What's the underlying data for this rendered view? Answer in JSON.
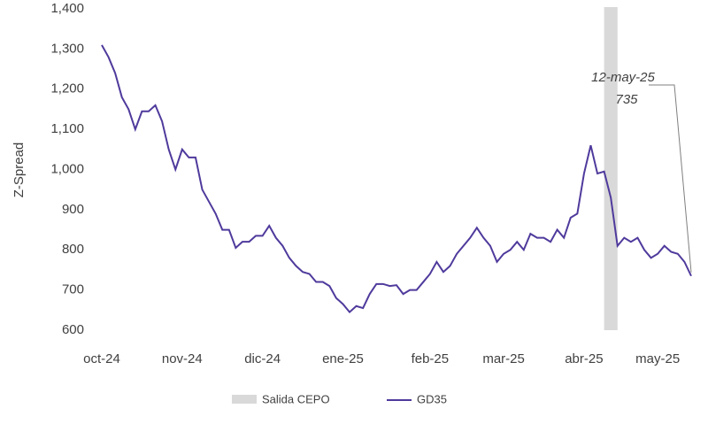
{
  "chart_data": {
    "type": "line",
    "y_label": "Z-Spread",
    "categories": [
      "oct-24",
      null,
      null,
      null,
      null,
      null,
      null,
      null,
      null,
      null,
      null,
      null,
      "nov-24",
      null,
      null,
      null,
      null,
      null,
      null,
      null,
      null,
      null,
      null,
      null,
      "dic-24",
      null,
      null,
      null,
      null,
      null,
      null,
      null,
      null,
      null,
      null,
      null,
      "ene-25",
      null,
      null,
      null,
      null,
      null,
      null,
      null,
      null,
      null,
      null,
      null,
      null,
      "feb-25",
      null,
      null,
      null,
      null,
      null,
      null,
      null,
      null,
      null,
      null,
      "mar-25",
      null,
      null,
      null,
      null,
      null,
      null,
      null,
      null,
      null,
      null,
      null,
      "abr-25",
      null,
      null,
      null,
      null,
      null,
      null,
      null,
      null,
      null,
      null,
      "may-25",
      null,
      null,
      null,
      null,
      null
    ],
    "series": [
      {
        "name": "GD35",
        "color": "#4f3a9c",
        "values": [
          1310,
          1280,
          1240,
          1180,
          1150,
          1100,
          1145,
          1145,
          1160,
          1120,
          1050,
          1000,
          1050,
          1030,
          1030,
          950,
          920,
          890,
          850,
          850,
          805,
          820,
          820,
          835,
          835,
          860,
          830,
          810,
          780,
          760,
          745,
          740,
          720,
          720,
          710,
          680,
          665,
          645,
          660,
          655,
          690,
          715,
          715,
          710,
          712,
          690,
          700,
          700,
          720,
          740,
          770,
          745,
          760,
          790,
          810,
          830,
          855,
          830,
          810,
          770,
          790,
          800,
          820,
          800,
          840,
          830,
          830,
          820,
          850,
          830,
          880,
          890,
          990,
          1060,
          990,
          995,
          930,
          810,
          830,
          820,
          830,
          800,
          780,
          790,
          810,
          795,
          790,
          770,
          735
        ]
      }
    ],
    "band": {
      "name": "Salida CEPO",
      "color": "#d9d9d9",
      "x_range": [
        75,
        77
      ]
    },
    "annotation": {
      "text": "12-may-25",
      "index": 88
    },
    "ylim": [
      600,
      1400
    ],
    "yticks": [
      600,
      700,
      800,
      900,
      {
        "value": 1000,
        "label": "1,000"
      },
      {
        "value": 1100,
        "label": "1,100"
      },
      {
        "value": 1200,
        "label": "1,200"
      },
      {
        "value": 1300,
        "label": "1,300"
      },
      {
        "value": 1400,
        "label": "1,400"
      }
    ],
    "grid": false
  }
}
